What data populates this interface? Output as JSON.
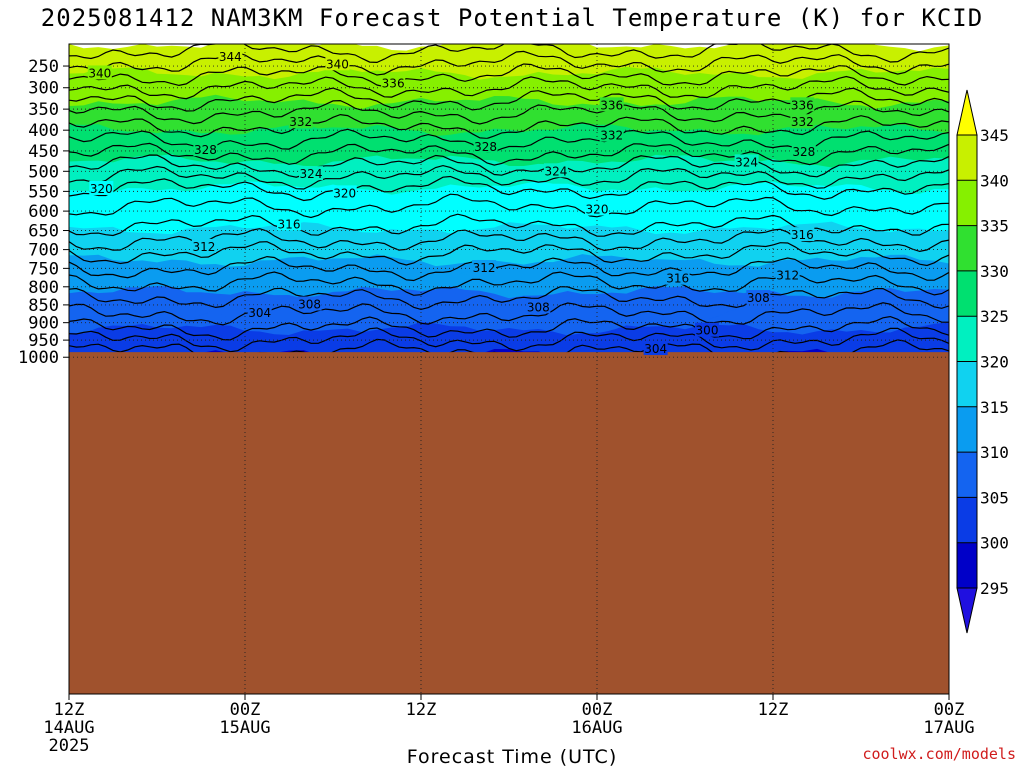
{
  "page": {
    "title": "2025081412 NAM3KM Forecast Potential Temperature (K) for KCID",
    "credit": "coolwx.com/models"
  },
  "chart_data": {
    "type": "heatmap",
    "title": "2025081412 NAM3KM Forecast Potential Temperature (K) for KCID",
    "xlabel": "Forecast Time (UTC)",
    "ylabel": "",
    "x_range_hours": [
      0,
      60
    ],
    "x_ticks": [
      {
        "hour": 0,
        "line1": "12Z",
        "line2": "14AUG",
        "line3": "2025"
      },
      {
        "hour": 12,
        "line1": "00Z",
        "line2": "15AUG",
        "line3": ""
      },
      {
        "hour": 24,
        "line1": "12Z",
        "line2": "",
        "line3": ""
      },
      {
        "hour": 36,
        "line1": "00Z",
        "line2": "16AUG",
        "line3": ""
      },
      {
        "hour": 48,
        "line1": "12Z",
        "line2": "",
        "line3": ""
      },
      {
        "hour": 60,
        "line1": "00Z",
        "line2": "17AUG",
        "line3": ""
      }
    ],
    "y_range_hPa": [
      1050,
      200
    ],
    "y_ticks": [
      250,
      300,
      350,
      400,
      450,
      500,
      550,
      600,
      650,
      700,
      750,
      800,
      850,
      900,
      950,
      1000
    ],
    "grid": true,
    "colorbar": {
      "levels": [
        295,
        300,
        305,
        310,
        315,
        320,
        325,
        330,
        335,
        340,
        345
      ],
      "colors": [
        "#2010e0",
        "#0000c8",
        "#0a3ce6",
        "#1464f0",
        "#0a9cf0",
        "#10d2f0",
        "#00ffff",
        "#00f0c0",
        "#00e070",
        "#30e030",
        "#86f000",
        "#c8f000",
        "#ffff00"
      ],
      "over_color": "#ffff00",
      "under_color": "#2010e0"
    },
    "profile": [
      {
        "p": 250,
        "theta": 341.5
      },
      {
        "p": 300,
        "theta": 338.0
      },
      {
        "p": 350,
        "theta": 334.5
      },
      {
        "p": 400,
        "theta": 331.5
      },
      {
        "p": 450,
        "theta": 328.5
      },
      {
        "p": 500,
        "theta": 325.0
      },
      {
        "p": 550,
        "theta": 321.5
      },
      {
        "p": 600,
        "theta": 319.5
      },
      {
        "p": 650,
        "theta": 317.5
      },
      {
        "p": 700,
        "theta": 314.5
      },
      {
        "p": 750,
        "theta": 312.0
      },
      {
        "p": 800,
        "theta": 309.5
      },
      {
        "p": 850,
        "theta": 307.0
      },
      {
        "p": 900,
        "theta": 305.0
      },
      {
        "p": 950,
        "theta": 302.0
      }
    ],
    "contour_labels": [
      {
        "text": "344",
        "hour": 11.0,
        "p": 229
      },
      {
        "text": "340",
        "hour": 2.1,
        "p": 267
      },
      {
        "text": "340",
        "hour": 18.3,
        "p": 246
      },
      {
        "text": "336",
        "hour": 22.1,
        "p": 290
      },
      {
        "text": "336",
        "hour": 37.0,
        "p": 341
      },
      {
        "text": "336",
        "hour": 50.0,
        "p": 341
      },
      {
        "text": "332",
        "hour": 15.8,
        "p": 381
      },
      {
        "text": "332",
        "hour": 37.0,
        "p": 413
      },
      {
        "text": "332",
        "hour": 50.0,
        "p": 381
      },
      {
        "text": "328",
        "hour": 9.3,
        "p": 448
      },
      {
        "text": "328",
        "hour": 28.4,
        "p": 440
      },
      {
        "text": "328",
        "hour": 50.1,
        "p": 453
      },
      {
        "text": "324",
        "hour": 16.5,
        "p": 507
      },
      {
        "text": "324",
        "hour": 33.2,
        "p": 500
      },
      {
        "text": "324",
        "hour": 46.2,
        "p": 478
      },
      {
        "text": "320",
        "hour": 2.2,
        "p": 544
      },
      {
        "text": "320",
        "hour": 18.8,
        "p": 555
      },
      {
        "text": "320",
        "hour": 36.0,
        "p": 596
      },
      {
        "text": "316",
        "hour": 15.0,
        "p": 634
      },
      {
        "text": "316",
        "hour": 50.0,
        "p": 662
      },
      {
        "text": "316",
        "hour": 41.5,
        "p": 778
      },
      {
        "text": "312",
        "hour": 9.2,
        "p": 693
      },
      {
        "text": "312",
        "hour": 28.3,
        "p": 749
      },
      {
        "text": "312",
        "hour": 49.0,
        "p": 769
      },
      {
        "text": "308",
        "hour": 16.4,
        "p": 849
      },
      {
        "text": "308",
        "hour": 32.0,
        "p": 857
      },
      {
        "text": "308",
        "hour": 47.0,
        "p": 831
      },
      {
        "text": "304",
        "hour": 13.0,
        "p": 873
      },
      {
        "text": "304",
        "hour": 40.0,
        "p": 976
      },
      {
        "text": "300",
        "hour": 43.5,
        "p": 923
      }
    ]
  }
}
